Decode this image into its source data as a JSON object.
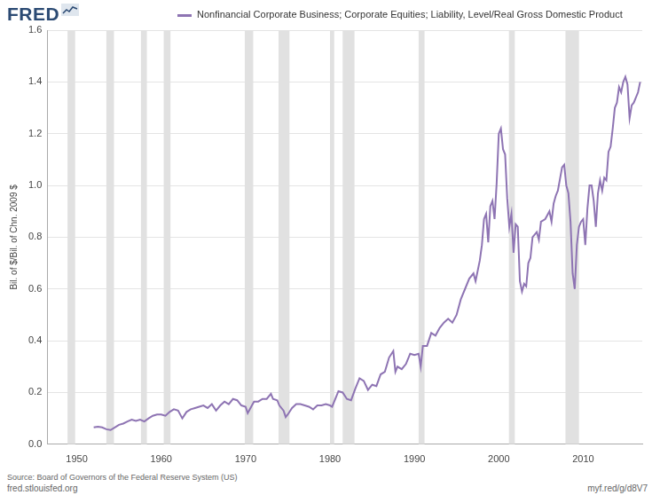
{
  "chart_data": {
    "type": "line",
    "logo": "FRED",
    "y_label": "Bil. of $/Bil. of Chn. 2009 $",
    "source": "Source: Board of Governors of the Federal Reserve System (US)",
    "footer_left": "fred.stlouisfed.org",
    "footer_right": "myf.red/g/d8V7",
    "legend": "top",
    "grid": true,
    "xlim": [
      1946.5,
      2017
    ],
    "xticks": [
      1950,
      1960,
      1970,
      1980,
      1990,
      2000,
      2010
    ],
    "ylim": [
      0,
      1.6
    ],
    "yticks": [
      {
        "value": 0,
        "label": "0.0"
      },
      0.2,
      0.4,
      0.6,
      0.8,
      {
        "value": 1,
        "label": "1.0"
      },
      1.2,
      1.4,
      1.6
    ],
    "recessions": [
      [
        1948.9,
        1949.8
      ],
      [
        1953.5,
        1954.4
      ],
      [
        1957.6,
        1958.3
      ],
      [
        1960.3,
        1961.1
      ],
      [
        1969.9,
        1970.9
      ],
      [
        1973.9,
        1975.2
      ],
      [
        1980.0,
        1980.5
      ],
      [
        1981.5,
        1982.9
      ],
      [
        1990.5,
        1991.2
      ],
      [
        2001.2,
        2001.9
      ],
      [
        2007.9,
        2009.5
      ]
    ],
    "x": [
      1952.0,
      1952.5,
      1953.0,
      1953.5,
      1954.0,
      1954.5,
      1955.0,
      1955.5,
      1956.0,
      1956.5,
      1957.0,
      1957.5,
      1958.0,
      1958.5,
      1959.0,
      1959.5,
      1960.0,
      1960.5,
      1961.0,
      1961.5,
      1962.0,
      1962.5,
      1963.0,
      1963.5,
      1964.0,
      1964.5,
      1965.0,
      1965.5,
      1966.0,
      1966.5,
      1967.0,
      1967.5,
      1968.0,
      1968.5,
      1969.0,
      1969.5,
      1970.0,
      1970.25,
      1970.75,
      1971.0,
      1971.5,
      1972.0,
      1972.5,
      1973.0,
      1973.25,
      1973.75,
      1974.0,
      1974.5,
      1974.75,
      1975.0,
      1975.5,
      1976.0,
      1976.5,
      1977.0,
      1977.5,
      1978.0,
      1978.5,
      1979.0,
      1979.5,
      1980.0,
      1980.25,
      1980.75,
      1981.0,
      1981.5,
      1982.0,
      1982.5,
      1983.0,
      1983.5,
      1984.0,
      1984.5,
      1985.0,
      1985.5,
      1986.0,
      1986.5,
      1987.0,
      1987.5,
      1987.75,
      1988.0,
      1988.5,
      1989.0,
      1989.5,
      1990.0,
      1990.5,
      1990.75,
      1991.0,
      1991.5,
      1992.0,
      1992.5,
      1993.0,
      1993.5,
      1994.0,
      1994.5,
      1995.0,
      1995.5,
      1996.0,
      1996.5,
      1997.0,
      1997.25,
      1997.75,
      1998.0,
      1998.25,
      1998.5,
      1998.75,
      1999.0,
      1999.25,
      1999.5,
      1999.75,
      2000.0,
      2000.25,
      2000.5,
      2000.75,
      2001.0,
      2001.25,
      2001.5,
      2001.75,
      2002.0,
      2002.25,
      2002.5,
      2002.75,
      2003.0,
      2003.25,
      2003.5,
      2003.75,
      2004.0,
      2004.5,
      2004.75,
      2005.0,
      2005.5,
      2006.0,
      2006.25,
      2006.5,
      2006.75,
      2007.0,
      2007.5,
      2007.75,
      2008.0,
      2008.25,
      2008.5,
      2008.75,
      2009.0,
      2009.25,
      2009.5,
      2009.75,
      2010.0,
      2010.25,
      2010.5,
      2010.75,
      2011.0,
      2011.25,
      2011.5,
      2011.75,
      2012.0,
      2012.25,
      2012.5,
      2012.75,
      2013.0,
      2013.25,
      2013.5,
      2013.75,
      2014.0,
      2014.25,
      2014.5,
      2014.75,
      2015.0,
      2015.25,
      2015.5,
      2015.75,
      2016.0,
      2016.5,
      2016.75
    ],
    "series": [
      {
        "name": "Nonfinancial Corporate Business; Corporate Equities; Liability, Level/Real Gross Domestic Product",
        "color": "#8e74b3",
        "values": [
          0.065,
          0.068,
          0.065,
          0.058,
          0.055,
          0.065,
          0.075,
          0.08,
          0.088,
          0.095,
          0.09,
          0.095,
          0.088,
          0.1,
          0.11,
          0.115,
          0.115,
          0.11,
          0.125,
          0.135,
          0.13,
          0.1,
          0.125,
          0.135,
          0.14,
          0.145,
          0.15,
          0.14,
          0.155,
          0.13,
          0.15,
          0.165,
          0.155,
          0.175,
          0.17,
          0.15,
          0.145,
          0.12,
          0.15,
          0.165,
          0.165,
          0.175,
          0.175,
          0.195,
          0.175,
          0.17,
          0.15,
          0.13,
          0.105,
          0.115,
          0.14,
          0.155,
          0.155,
          0.15,
          0.145,
          0.135,
          0.15,
          0.15,
          0.155,
          0.15,
          0.145,
          0.185,
          0.205,
          0.2,
          0.175,
          0.17,
          0.215,
          0.255,
          0.245,
          0.21,
          0.23,
          0.225,
          0.27,
          0.28,
          0.335,
          0.36,
          0.28,
          0.3,
          0.29,
          0.31,
          0.35,
          0.345,
          0.35,
          0.3,
          0.38,
          0.38,
          0.43,
          0.42,
          0.45,
          0.47,
          0.485,
          0.47,
          0.5,
          0.56,
          0.6,
          0.64,
          0.66,
          0.63,
          0.71,
          0.77,
          0.87,
          0.89,
          0.78,
          0.92,
          0.94,
          0.87,
          1.01,
          1.2,
          1.22,
          1.14,
          1.12,
          0.95,
          0.84,
          0.89,
          0.74,
          0.85,
          0.84,
          0.63,
          0.59,
          0.62,
          0.61,
          0.7,
          0.72,
          0.8,
          0.82,
          0.79,
          0.86,
          0.87,
          0.9,
          0.86,
          0.93,
          0.96,
          0.98,
          1.07,
          1.08,
          1.0,
          0.97,
          0.86,
          0.66,
          0.6,
          0.77,
          0.84,
          0.86,
          0.87,
          0.77,
          0.91,
          1.0,
          1.0,
          0.94,
          0.84,
          0.97,
          1.02,
          0.98,
          1.03,
          1.02,
          1.13,
          1.15,
          1.22,
          1.3,
          1.32,
          1.38,
          1.36,
          1.4,
          1.42,
          1.39,
          1.26,
          1.31,
          1.32,
          1.36,
          1.4
        ]
      }
    ]
  }
}
